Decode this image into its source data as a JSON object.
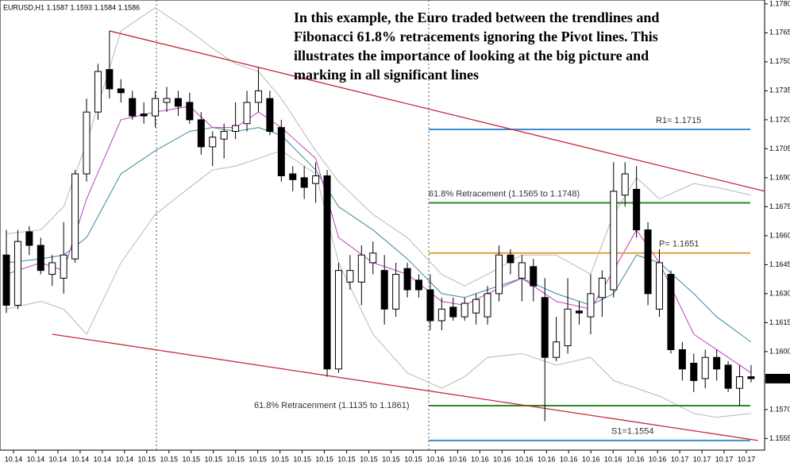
{
  "chart_data": {
    "type": "candlestick",
    "header": "EURUSD,H1  1.1587 1.1593 1.1584 1.1586",
    "annotation": [
      "In this example, the Euro traded between the trendlines and",
      "Fibonacci 61.8% retracements  ignoring the Pivot lines. This",
      "illustrates the importance of  looking at the big  picture and",
      "marking in all significant lines"
    ],
    "ylim": [
      1.1549,
      1.1782
    ],
    "yticks": [
      {
        "value": 1.178,
        "label": "1.1780"
      },
      1.1765,
      {
        "value": 1.175,
        "label": "1.1750"
      },
      1.1735,
      {
        "value": 1.172,
        "label": "1.1720"
      },
      1.1705,
      {
        "value": 1.169,
        "label": "1.1690"
      },
      1.1675,
      {
        "value": 1.166,
        "label": "1.1660"
      },
      1.1645,
      {
        "value": 1.163,
        "label": "1.1630"
      },
      1.1615,
      {
        "value": 1.16,
        "label": "1.1600"
      },
      {
        "value": 1.157,
        "label": "1.1570"
      },
      1.1555
    ],
    "last_price": 1.1586,
    "xlabels": [
      "10.14",
      "10.14",
      "10.14",
      "10.14",
      "10.14",
      "10.14",
      "10.15",
      "10.15",
      "10.15",
      "10.15",
      "10.15",
      "10.15",
      "10.15",
      "10.15",
      "10.15",
      "10.15",
      "10.15",
      "10.15",
      "10.15",
      "10.16",
      "10.16",
      "10.16",
      "10.16",
      "10.16",
      "10.16",
      "10.16",
      "10.16",
      "10.16",
      "10.16",
      "10.16",
      "10.17",
      "10.17",
      "10.17",
      "10.17"
    ],
    "open": [
      1.165,
      1.1624,
      1.1662,
      1.1655,
      1.164,
      1.1638,
      1.1648,
      1.1692,
      1.1724,
      1.1746,
      1.1736,
      1.1731,
      1.1723,
      1.1722,
      1.1729,
      1.1731,
      1.1729,
      1.172,
      1.1706,
      1.171,
      1.1714,
      1.1718,
      1.1729,
      1.1731,
      1.1716,
      1.1692,
      1.169,
      1.1687,
      1.1691,
      1.1591,
      1.1636,
      1.1636,
      1.1646,
      1.1642,
      1.1622,
      1.1643,
      1.1637,
      1.1632,
      1.1616,
      1.1623,
      1.1618,
      1.162,
      1.1618,
      1.163,
      1.165,
      1.1638,
      1.1644,
      1.1628,
      1.1597,
      1.1603,
      1.1621,
      1.1618,
      1.1628,
      1.1632,
      1.1681,
      1.1684,
      1.1663,
      1.1622,
      1.164,
      1.1601,
      1.1594,
      1.1586,
      1.1597,
      1.1593,
      1.1581,
      1.1587
    ],
    "high": [
      1.1663,
      1.1663,
      1.1665,
      1.1659,
      1.165,
      1.1667,
      1.1694,
      1.1731,
      1.1749,
      1.1766,
      1.1741,
      1.1735,
      1.1729,
      1.1735,
      1.1737,
      1.1735,
      1.1734,
      1.1724,
      1.1714,
      1.1718,
      1.1729,
      1.1735,
      1.1747,
      1.1735,
      1.172,
      1.1696,
      1.1696,
      1.1698,
      1.1694,
      1.1646,
      1.165,
      1.1655,
      1.1657,
      1.165,
      1.1646,
      1.1646,
      1.164,
      1.164,
      1.1628,
      1.1628,
      1.1628,
      1.163,
      1.1634,
      1.1655,
      1.1653,
      1.165,
      1.1648,
      1.1638,
      1.1618,
      1.1638,
      1.1626,
      1.164,
      1.1642,
      1.1698,
      1.1698,
      1.1696,
      1.1667,
      1.1653,
      1.1642,
      1.1605,
      1.1599,
      1.1601,
      1.1601,
      1.1595,
      1.1593,
      1.1593
    ],
    "low": [
      1.162,
      1.1622,
      1.165,
      1.164,
      1.1634,
      1.163,
      1.1646,
      1.1688,
      1.172,
      1.1731,
      1.1729,
      1.172,
      1.1718,
      1.1716,
      1.1724,
      1.1722,
      1.1718,
      1.1702,
      1.1696,
      1.17,
      1.171,
      1.1714,
      1.1724,
      1.1712,
      1.1688,
      1.1683,
      1.1679,
      1.1677,
      1.1587,
      1.1589,
      1.1632,
      1.1624,
      1.164,
      1.1614,
      1.1618,
      1.1628,
      1.1628,
      1.1611,
      1.1611,
      1.1616,
      1.1616,
      1.1614,
      1.1614,
      1.1626,
      1.164,
      1.1626,
      1.1626,
      1.1564,
      1.1595,
      1.1599,
      1.1614,
      1.1609,
      1.1618,
      1.1628,
      1.1675,
      1.1659,
      1.1624,
      1.1618,
      1.1599,
      1.1585,
      1.1579,
      1.1581,
      1.1585,
      1.1579,
      1.1572,
      1.1584
    ],
    "close": [
      1.1624,
      1.1657,
      1.1655,
      1.1642,
      1.1646,
      1.165,
      1.1692,
      1.1724,
      1.1745,
      1.1736,
      1.1734,
      1.1722,
      1.1722,
      1.1731,
      1.1731,
      1.1727,
      1.172,
      1.1706,
      1.1711,
      1.1714,
      1.1717,
      1.1729,
      1.1735,
      1.1714,
      1.1691,
      1.1689,
      1.1685,
      1.1691,
      1.1591,
      1.1642,
      1.1642,
      1.165,
      1.1651,
      1.1622,
      1.164,
      1.1632,
      1.1632,
      1.1616,
      1.1622,
      1.1618,
      1.1625,
      1.1627,
      1.163,
      1.165,
      1.1646,
      1.1646,
      1.1634,
      1.1597,
      1.1605,
      1.1622,
      1.162,
      1.163,
      1.1638,
      1.1683,
      1.1692,
      1.1663,
      1.163,
      1.1646,
      1.1601,
      1.1591,
      1.1585,
      1.1597,
      1.1591,
      1.1581,
      1.1587,
      1.1586
    ],
    "overlays": [
      {
        "color": "#b8b8b8",
        "x": [
          0,
          3,
          5,
          7,
          10,
          13,
          16,
          18,
          20,
          22,
          24,
          27,
          29,
          32,
          35,
          38,
          40,
          42,
          45,
          48,
          51,
          53,
          55,
          57,
          60,
          62,
          65
        ],
        "values": [
          1.1661,
          1.1663,
          1.1675,
          1.1708,
          1.1766,
          1.1778,
          1.1766,
          1.1757,
          1.1749,
          1.1745,
          1.1731,
          1.1704,
          1.1688,
          1.1671,
          1.1659,
          1.164,
          1.1634,
          1.164,
          1.165,
          1.165,
          1.164,
          1.1671,
          1.169,
          1.1679,
          1.1687,
          1.1685,
          1.1681
        ]
      },
      {
        "color": "#b8b8b8",
        "x": [
          0,
          3,
          5,
          7,
          10,
          13,
          16,
          18,
          20,
          22,
          24,
          27,
          29,
          32,
          35,
          38,
          40,
          42,
          45,
          48,
          51,
          53,
          55,
          57,
          60,
          62,
          65
        ],
        "values": [
          1.1622,
          1.1626,
          1.1622,
          1.1609,
          1.1646,
          1.1671,
          1.1685,
          1.1694,
          1.1696,
          1.17,
          1.1704,
          1.1692,
          1.1646,
          1.1609,
          1.1589,
          1.1581,
          1.1587,
          1.1597,
          1.1599,
          1.1593,
          1.1597,
          1.1585,
          1.1581,
          1.1577,
          1.1568,
          1.1566,
          1.1568
        ]
      },
      {
        "color": "#3a8a9a",
        "x": [
          0,
          3,
          5,
          7,
          10,
          13,
          16,
          18,
          20,
          22,
          24,
          27,
          29,
          32,
          35,
          38,
          40,
          42,
          45,
          48,
          51,
          53,
          55,
          57,
          60,
          62,
          65
        ],
        "values": [
          1.1646,
          1.1648,
          1.165,
          1.1659,
          1.1692,
          1.1704,
          1.1714,
          1.1716,
          1.1714,
          1.1716,
          1.1712,
          1.1694,
          1.1675,
          1.1663,
          1.1648,
          1.163,
          1.1628,
          1.1632,
          1.1638,
          1.163,
          1.1624,
          1.163,
          1.165,
          1.1646,
          1.163,
          1.1618,
          1.1605
        ]
      },
      {
        "color": "#c040c0",
        "x": [
          0,
          3,
          5,
          7,
          10,
          13,
          16,
          18,
          20,
          22,
          24,
          27,
          29,
          32,
          35,
          38,
          40,
          42,
          45,
          48,
          51,
          53,
          55,
          57,
          60,
          62,
          65
        ],
        "values": [
          1.164,
          1.1646,
          1.1642,
          1.1679,
          1.172,
          1.1724,
          1.1727,
          1.1716,
          1.1716,
          1.1724,
          1.1716,
          1.17,
          1.1659,
          1.1646,
          1.164,
          1.1626,
          1.1624,
          1.163,
          1.1638,
          1.1626,
          1.1622,
          1.1642,
          1.1663,
          1.1646,
          1.1609,
          1.1601,
          1.1589
        ]
      }
    ],
    "trendlines": [
      {
        "color": "#c8283c",
        "x": [
          9,
          66.2
        ],
        "values": [
          1.1766,
          1.1683
        ]
      },
      {
        "color": "#c8283c",
        "x": [
          4,
          65.6
        ],
        "values": [
          1.1609,
          1.1554
        ]
      }
    ],
    "levels": [
      {
        "value": 1.1715,
        "label": "R1= 1.1715",
        "color": "#3c8cd0"
      },
      {
        "value": 1.1677,
        "label": "61.8% Retracement (1.1565 to 1.1748)",
        "color": "#2a8a2a"
      },
      {
        "value": 1.1651,
        "label": "P= 1.1651",
        "color": "#e0a040"
      },
      {
        "value": 1.1572,
        "label": "61.8% Retracenment (1.1135 to 1.1861)",
        "color": "#2a8a2a"
      },
      {
        "value": 1.1554,
        "label": "S1=1.1554",
        "color": "#3c8cd0"
      }
    ]
  }
}
